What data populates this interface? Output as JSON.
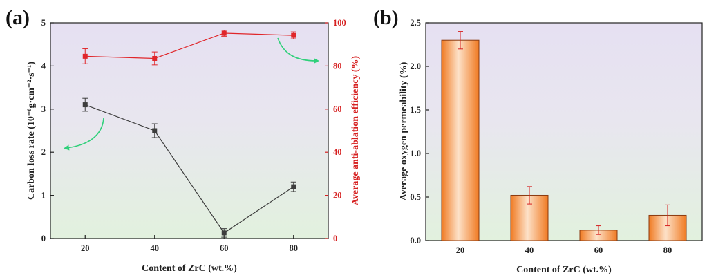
{
  "colors": {
    "black_series": "#3d3d3d",
    "red_series": "#e0262a",
    "arrow_green": "#2fd07a",
    "bar_orange": "#f08a35",
    "bar_edge": "#8a3a10",
    "bg_top": "#e6e0f2",
    "bg_bottom": "#e3f1df"
  },
  "chart_data": [
    {
      "panel_label": "(a)",
      "type": "line",
      "title": "",
      "xlabel": "Content of ZrC (wt.%)",
      "ylabel": "Carbon loss  rate (10⁻⁶g·cm⁻²·s⁻¹)",
      "ylabel_right": "Average anti-ablation efficiency (%)",
      "x": [
        20,
        40,
        60,
        80
      ],
      "xlim": [
        10,
        90
      ],
      "ylim": [
        0,
        5
      ],
      "ylim_right": [
        0,
        100
      ],
      "xticks": [
        "20",
        "40",
        "60",
        "80"
      ],
      "yticks": [
        "0",
        "1",
        "2",
        "3",
        "4",
        "5"
      ],
      "yticks_right": [
        "0",
        "20",
        "40",
        "60",
        "80",
        "100"
      ],
      "grid": false,
      "series": [
        {
          "axis": "left",
          "color": "#3d3d3d",
          "marker": "square",
          "values": [
            3.1,
            2.5,
            0.13,
            1.2
          ],
          "errors": [
            0.15,
            0.16,
            0.1,
            0.11
          ]
        },
        {
          "axis": "right",
          "color": "#e0262a",
          "marker": "square",
          "values": [
            84.5,
            83.5,
            95.2,
            94.2
          ],
          "errors": [
            3.5,
            3.0,
            1.4,
            1.6
          ]
        }
      ]
    },
    {
      "panel_label": "(b)",
      "type": "bar",
      "title": "",
      "xlabel": "Content of ZrC (wt.%)",
      "ylabel": "Average oxygen permeability (%)",
      "categories": [
        "20",
        "40",
        "60",
        "80"
      ],
      "values": [
        2.3,
        0.52,
        0.12,
        0.29
      ],
      "errors": [
        0.1,
        0.1,
        0.05,
        0.12
      ],
      "ylim": [
        0,
        2.5
      ],
      "yticks": [
        "0.0",
        "0.5",
        "1.0",
        "1.5",
        "2.0",
        "2.5"
      ],
      "grid": false
    }
  ]
}
